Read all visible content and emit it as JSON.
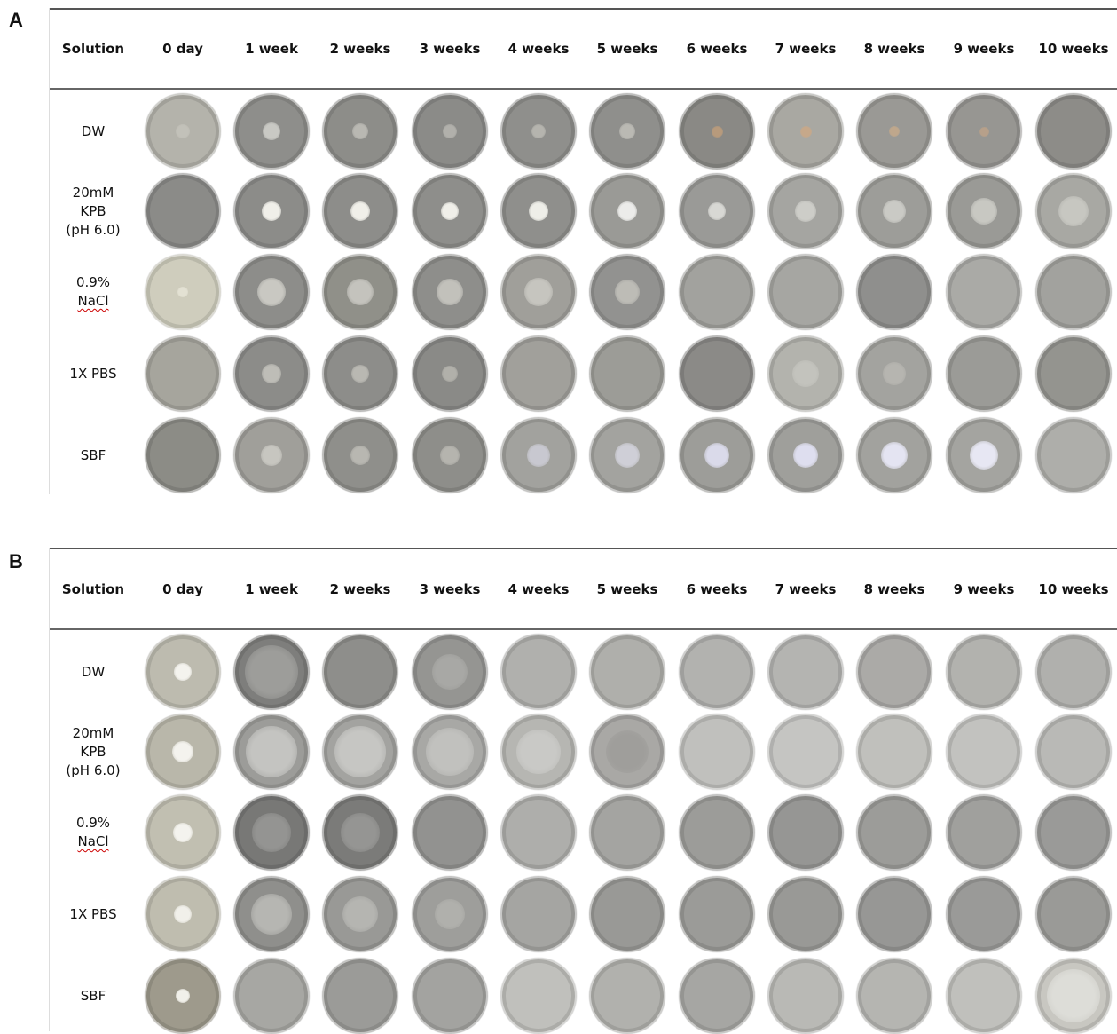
{
  "panels": [
    {
      "letter": "A",
      "header": [
        "Solution",
        "0 day",
        "1 week",
        "2 weeks",
        "3 weeks",
        "4 weeks",
        "5 weeks",
        "6 weeks",
        "7 weeks",
        "8 weeks",
        "9 weeks",
        "10 weeks"
      ],
      "rows": [
        {
          "label": [
            "DW"
          ]
        },
        {
          "label": [
            "20mM",
            "KPB",
            "(pH 6.0)"
          ]
        },
        {
          "label": [
            "0.9%",
            "NaCl"
          ]
        },
        {
          "label": [
            "1X PBS"
          ]
        },
        {
          "label": [
            "SBF"
          ]
        }
      ]
    },
    {
      "letter": "B",
      "header": [
        "Solution",
        "0 day",
        "1 week",
        "2 weeks",
        "3 weeks",
        "4 weeks",
        "5 weeks",
        "6 weeks",
        "7 weeks",
        "8 weeks",
        "9 weeks",
        "10 weeks"
      ],
      "rows": [
        {
          "label": [
            "DW"
          ]
        },
        {
          "label": [
            "20mM",
            "KPB",
            "(pH 6.0)"
          ]
        },
        {
          "label": [
            "0.9%",
            "NaCl"
          ]
        },
        {
          "label": [
            "1X PBS"
          ]
        },
        {
          "label": [
            "SBF"
          ]
        }
      ]
    }
  ],
  "colors": {
    "rule": "#555555",
    "text": "#111111",
    "squiggle": "#cc0000"
  }
}
